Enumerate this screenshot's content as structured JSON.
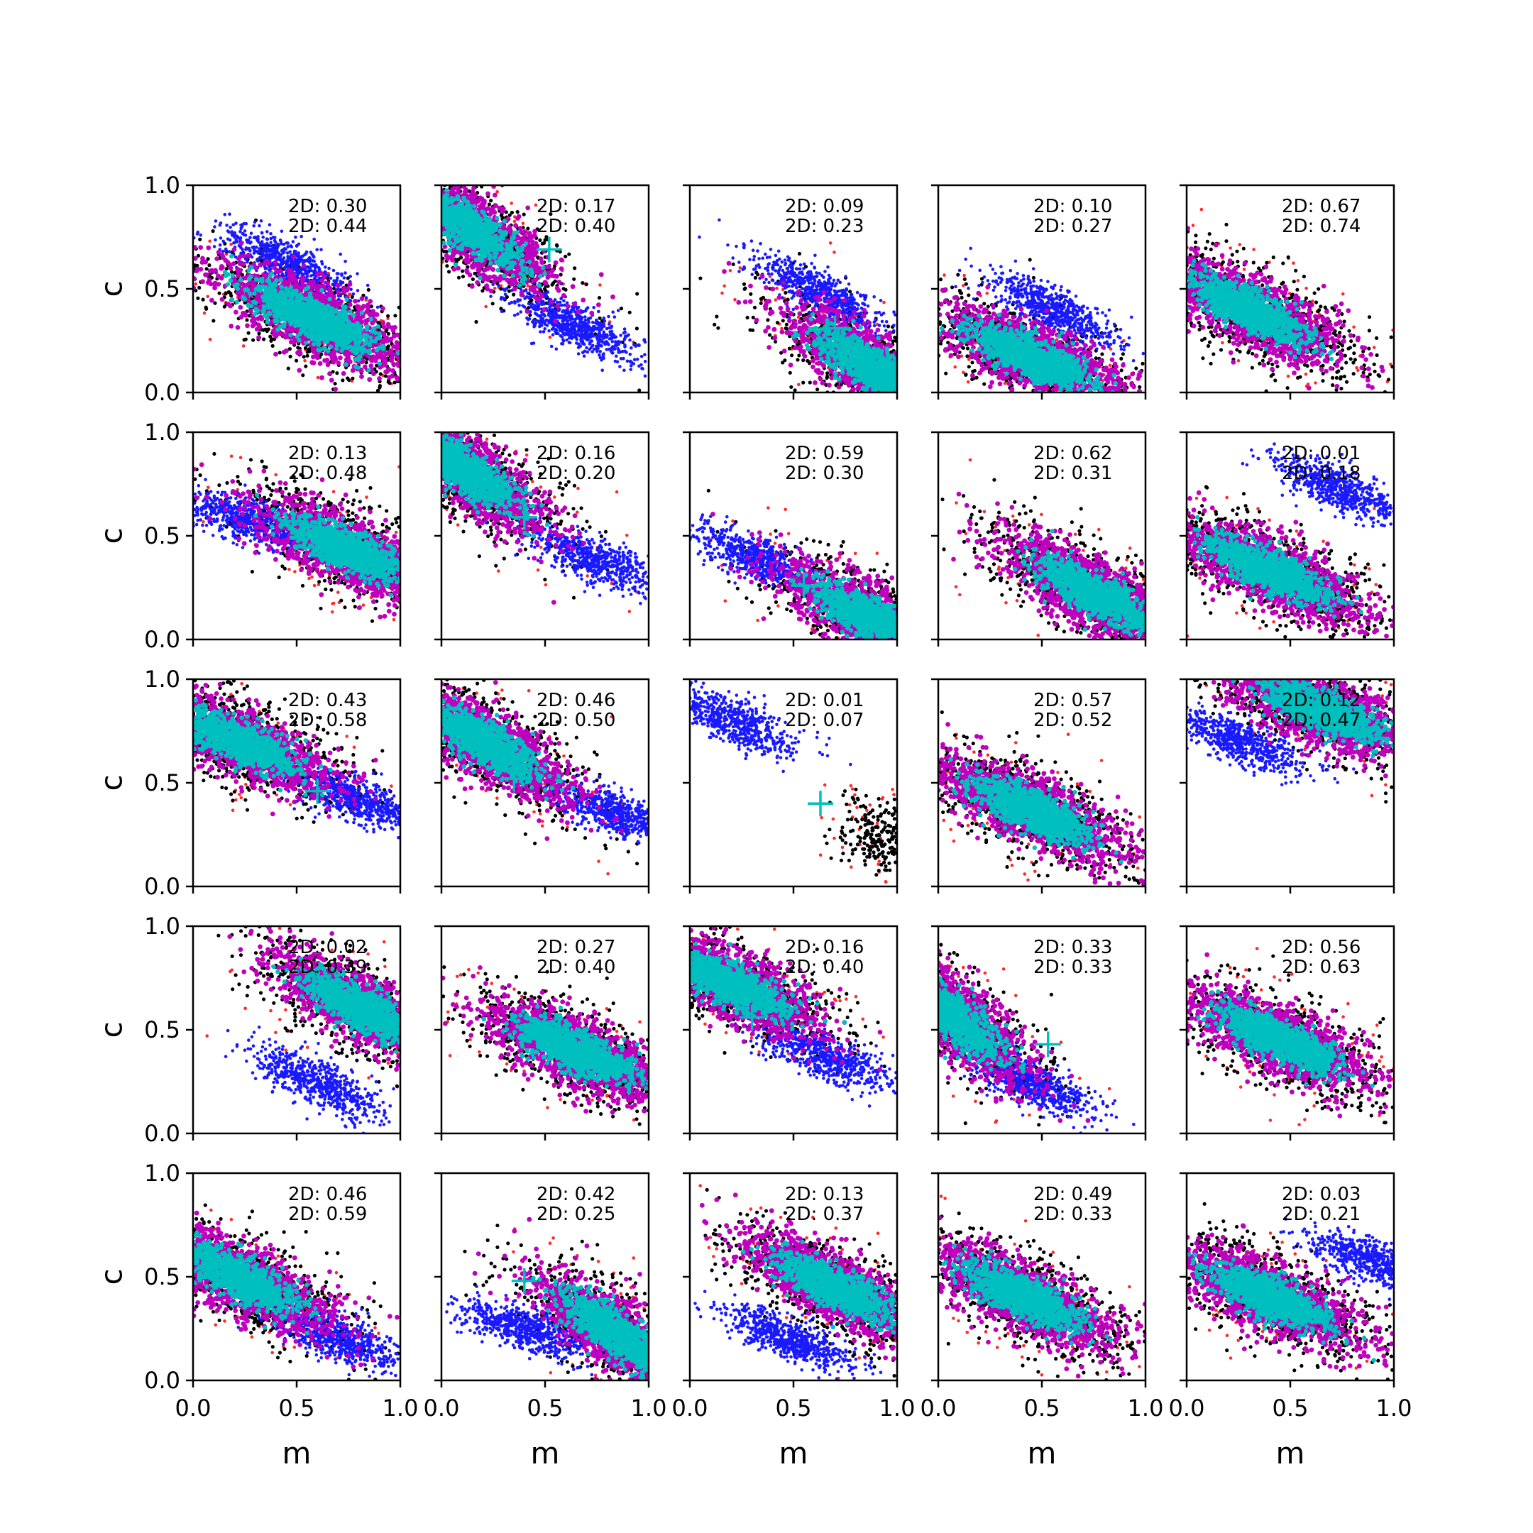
{
  "chart_data": {
    "type": "scatter",
    "title": "",
    "xlabel": "m",
    "ylabel": "c",
    "xlim": [
      0,
      1
    ],
    "ylim": [
      0,
      1
    ],
    "xticks": [
      "0.0",
      "0.5",
      "1.0"
    ],
    "yticks": [
      "0.0",
      "0.5",
      "1.0"
    ],
    "grid": false,
    "layout": "5x5 panels",
    "colors": {
      "red": "#ff2a2a",
      "black": "#000000",
      "magenta": "#bf00bf",
      "cyan": "#00bfbf",
      "blue": "#1a1aff",
      "cross": "#00bfbf"
    },
    "panels": [
      {
        "ann1": "2D: 0.30",
        "ann2": "2D: 0.44",
        "main": {
          "center": [
            0.58,
            0.36
          ],
          "slope": -0.48,
          "spread": 0.12
        },
        "blue": {
          "center": [
            0.45,
            0.63
          ],
          "slope": -0.48
        },
        "cross": null
      },
      {
        "ann1": "2D: 0.17",
        "ann2": "2D: 0.40",
        "main": {
          "center": [
            0.12,
            0.8
          ],
          "slope": -0.7,
          "spread": 0.12
        },
        "blue": {
          "center": [
            0.65,
            0.32
          ],
          "slope": -0.45
        },
        "cross": [
          0.52,
          0.69
        ]
      },
      {
        "ann1": "2D: 0.09",
        "ann2": "2D: 0.23",
        "main": {
          "center": [
            0.88,
            0.12
          ],
          "slope": -0.6,
          "spread": 0.12
        },
        "blue": {
          "center": [
            0.62,
            0.48
          ],
          "slope": -0.5
        },
        "cross": [
          0.7,
          0.31
        ]
      },
      {
        "ann1": "2D: 0.10",
        "ann2": "2D: 0.27",
        "main": {
          "center": [
            0.45,
            0.17
          ],
          "slope": -0.45,
          "spread": 0.12
        },
        "blue": {
          "center": [
            0.55,
            0.4
          ],
          "slope": -0.5
        },
        "cross": [
          0.4,
          0.28
        ]
      },
      {
        "ann1": "2D: 0.67",
        "ann2": "2D: 0.74",
        "main": {
          "center": [
            0.3,
            0.4
          ],
          "slope": -0.5,
          "spread": 0.12
        },
        "blue": null,
        "cross": null
      },
      {
        "ann1": "2D: 0.13",
        "ann2": "2D: 0.48",
        "main": {
          "center": [
            0.75,
            0.43
          ],
          "slope": -0.45,
          "spread": 0.12
        },
        "blue": {
          "center": [
            0.25,
            0.58
          ],
          "slope": -0.35
        },
        "cross": [
          0.48,
          0.57
        ]
      },
      {
        "ann1": "2D: 0.16",
        "ann2": "2D: 0.20",
        "main": {
          "center": [
            0.1,
            0.82
          ],
          "slope": -0.7,
          "spread": 0.12
        },
        "blue": {
          "center": [
            0.75,
            0.38
          ],
          "slope": -0.4
        },
        "cross": [
          0.4,
          0.59
        ]
      },
      {
        "ann1": "2D: 0.59",
        "ann2": "2D: 0.30",
        "main": {
          "center": [
            0.88,
            0.1
          ],
          "slope": -0.5,
          "spread": 0.12
        },
        "blue": {
          "center": [
            0.3,
            0.4
          ],
          "slope": -0.45
        },
        "cross": [
          0.55,
          0.26
        ]
      },
      {
        "ann1": "2D: 0.62",
        "ann2": "2D: 0.31",
        "main": {
          "center": [
            0.75,
            0.22
          ],
          "slope": -0.55,
          "spread": 0.12
        },
        "blue": null,
        "cross": [
          0.53,
          0.37
        ]
      },
      {
        "ann1": "2D: 0.01",
        "ann2": "2D: 0.18",
        "main": {
          "center": [
            0.4,
            0.33
          ],
          "slope": -0.45,
          "spread": 0.12
        },
        "blue": {
          "center": [
            0.75,
            0.72
          ],
          "slope": -0.45
        },
        "cross": null
      },
      {
        "ann1": "2D: 0.43",
        "ann2": "2D: 0.58",
        "main": {
          "center": [
            0.22,
            0.7
          ],
          "slope": -0.45,
          "spread": 0.12
        },
        "blue": {
          "center": [
            0.8,
            0.42
          ],
          "slope": -0.4
        },
        "cross": [
          0.6,
          0.46
        ]
      },
      {
        "ann1": "2D: 0.46",
        "ann2": "2D: 0.50",
        "main": {
          "center": [
            0.2,
            0.7
          ],
          "slope": -0.6,
          "spread": 0.12
        },
        "blue": {
          "center": [
            0.85,
            0.35
          ],
          "slope": -0.4
        },
        "cross": [
          0.35,
          0.52
        ]
      },
      {
        "ann1": "2D: 0.01",
        "ann2": "2D: 0.07",
        "main": null,
        "black": {
          "center": [
            0.93,
            0.25
          ],
          "slope": -0.4
        },
        "blue": {
          "center": [
            0.2,
            0.8
          ],
          "slope": -0.45
        },
        "cross": [
          0.63,
          0.4
        ]
      },
      {
        "ann1": "2D: 0.57",
        "ann2": "2D: 0.52",
        "main": {
          "center": [
            0.45,
            0.37
          ],
          "slope": -0.45,
          "spread": 0.12
        },
        "blue": null,
        "cross": null
      },
      {
        "ann1": "2D: 0.12",
        "ann2": "2D: 0.47",
        "main": {
          "center": [
            0.65,
            0.85
          ],
          "slope": -0.4,
          "spread": 0.12
        },
        "blue": {
          "center": [
            0.25,
            0.7
          ],
          "slope": -0.4
        },
        "cross": null
      },
      {
        "ann1": "2D: 0.02",
        "ann2": "2D: 0.39",
        "main": {
          "center": [
            0.82,
            0.6
          ],
          "slope": -0.55,
          "spread": 0.12
        },
        "blue": {
          "center": [
            0.6,
            0.25
          ],
          "slope": -0.45
        },
        "cross": [
          0.58,
          0.7
        ]
      },
      {
        "ann1": "2D: 0.27",
        "ann2": "2D: 0.40",
        "main": {
          "center": [
            0.65,
            0.4
          ],
          "slope": -0.45,
          "spread": 0.12
        },
        "blue": null,
        "cross": null
      },
      {
        "ann1": "2D: 0.16",
        "ann2": "2D: 0.40",
        "main": {
          "center": [
            0.2,
            0.72
          ],
          "slope": -0.45,
          "spread": 0.12
        },
        "blue": {
          "center": [
            0.65,
            0.37
          ],
          "slope": -0.4
        },
        "cross": [
          0.3,
          0.56
        ]
      },
      {
        "ann1": "2D: 0.33",
        "ann2": "2D: 0.33",
        "main": {
          "center": [
            0.05,
            0.58
          ],
          "slope": -0.8,
          "spread": 0.12
        },
        "blue": {
          "center": [
            0.45,
            0.25
          ],
          "slope": -0.45
        },
        "cross": [
          0.53,
          0.43
        ]
      },
      {
        "ann1": "2D: 0.56",
        "ann2": "2D: 0.63",
        "main": {
          "center": [
            0.45,
            0.45
          ],
          "slope": -0.45,
          "spread": 0.12
        },
        "blue": null,
        "cross": null
      },
      {
        "ann1": "2D: 0.46",
        "ann2": "2D: 0.59",
        "main": {
          "center": [
            0.22,
            0.5
          ],
          "slope": -0.5,
          "spread": 0.12
        },
        "blue": {
          "center": [
            0.7,
            0.2
          ],
          "slope": -0.4
        },
        "cross": [
          0.48,
          0.38
        ]
      },
      {
        "ann1": "2D: 0.42",
        "ann2": "2D: 0.25",
        "main": {
          "center": [
            0.85,
            0.22
          ],
          "slope": -0.7,
          "spread": 0.12
        },
        "blue": {
          "center": [
            0.4,
            0.25
          ],
          "slope": -0.3
        },
        "cross": [
          0.4,
          0.48
        ]
      },
      {
        "ann1": "2D: 0.13",
        "ann2": "2D: 0.37",
        "main": {
          "center": [
            0.7,
            0.45
          ],
          "slope": -0.5,
          "spread": 0.12
        },
        "blue": {
          "center": [
            0.48,
            0.2
          ],
          "slope": -0.4
        },
        "cross": null
      },
      {
        "ann1": "2D: 0.49",
        "ann2": "2D: 0.33",
        "main": {
          "center": [
            0.42,
            0.4
          ],
          "slope": -0.5,
          "spread": 0.12
        },
        "blue": null,
        "cross": null
      },
      {
        "ann1": "2D: 0.03",
        "ann2": "2D: 0.21",
        "main": {
          "center": [
            0.4,
            0.4
          ],
          "slope": -0.45,
          "spread": 0.12
        },
        "blue": {
          "center": [
            0.9,
            0.58
          ],
          "slope": -0.3
        },
        "cross": null
      }
    ]
  }
}
